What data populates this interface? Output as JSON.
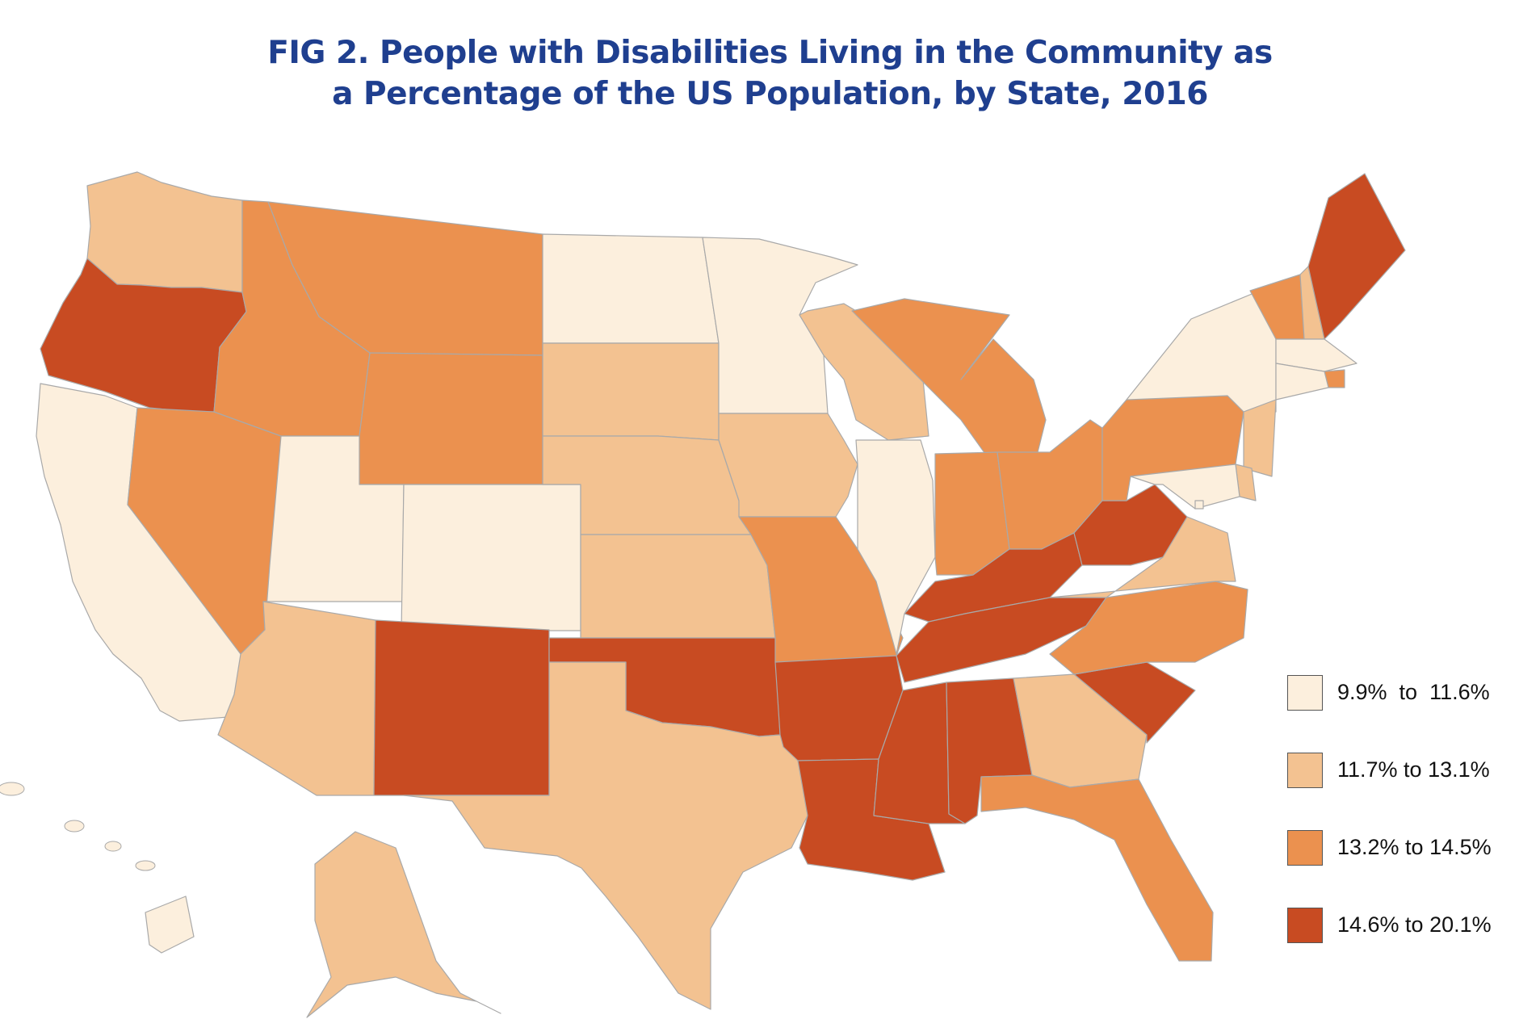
{
  "title": {
    "line1": "FIG 2. People with Disabilities Living in the Community as",
    "line2": "a Percentage of the US Population, by State, 2016"
  },
  "colors": {
    "c1": "#fcefdd",
    "c2": "#f3c291",
    "c3": "#eb914f",
    "c4": "#c84b22",
    "border": "#a9a9a9"
  },
  "legend": [
    {
      "label": "9.9%  to  11.6%",
      "color": "c1"
    },
    {
      "label": "11.7% to 13.1%",
      "color": "c2"
    },
    {
      "label": "13.2% to 14.5%",
      "color": "c3"
    },
    {
      "label": "14.6% to 20.1%",
      "color": "c4"
    }
  ],
  "chart_data": {
    "type": "choropleth",
    "region": "United States, by state",
    "bins": [
      "9.9% to 11.6%",
      "11.7% to 13.1%",
      "13.2% to 14.5%",
      "14.6% to 20.1%"
    ],
    "states": {
      "WA": 2,
      "OR": 4,
      "CA": 1,
      "NV": 3,
      "ID": 3,
      "MT": 3,
      "WY": 3,
      "UT": 1,
      "CO": 1,
      "AZ": 2,
      "NM": 4,
      "ND": 1,
      "SD": 2,
      "NE": 2,
      "KS": 2,
      "OK": 4,
      "TX": 2,
      "MN": 1,
      "IA": 2,
      "MO": 3,
      "AR": 4,
      "LA": 4,
      "WI": 2,
      "IL": 1,
      "MI": 3,
      "IN": 3,
      "OH": 3,
      "KY": 4,
      "TN": 4,
      "MS": 4,
      "AL": 4,
      "GA": 2,
      "FL": 3,
      "SC": 4,
      "NC": 3,
      "VA": 2,
      "WV": 4,
      "PA": 3,
      "NY": 1,
      "VT": 3,
      "NH": 2,
      "ME": 4,
      "MA": 1,
      "RI": 3,
      "CT": 1,
      "NJ": 2,
      "DE": 2,
      "MD": 1,
      "DC": 1,
      "AK": 2,
      "HI": 1
    }
  }
}
